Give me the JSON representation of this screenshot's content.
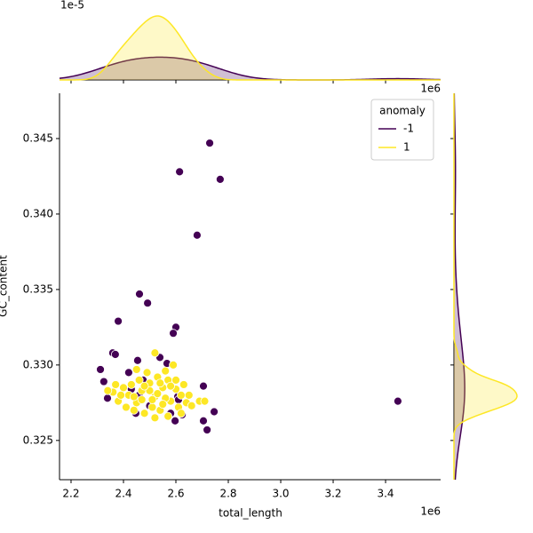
{
  "chart_data": {
    "type": "scatter",
    "x_label": "total_length",
    "y_label": "GC_content",
    "x_offset_label": "1e6",
    "marginal_y_offset_label": "1e6",
    "marginal_x_offset_label": "1e-5",
    "legend_title": "anomaly",
    "legend": "upper right",
    "xlim": [
      2.156,
      3.61
    ],
    "xticks": [
      2.2,
      2.4,
      2.6,
      2.8,
      {
        "value": 3,
        "label": "3.0"
      },
      3.2,
      3.4
    ],
    "ylim": [
      0.3224,
      0.348
    ],
    "yticks": [
      0.325,
      {
        "value": 0.33,
        "label": "0.330"
      },
      0.335,
      {
        "value": 0.34,
        "label": "0.340"
      },
      0.345
    ],
    "series": [
      {
        "name": "-1",
        "color": "#440154",
        "x": [
          2.729,
          2.614,
          2.769,
          2.681,
          2.461,
          2.492,
          2.38,
          2.6,
          2.59,
          2.359,
          2.369,
          3.447,
          2.312,
          2.539,
          2.42,
          2.705,
          2.746,
          2.719,
          2.705,
          2.597,
          2.624,
          2.325,
          2.339,
          2.454,
          2.447,
          2.475,
          2.566,
          2.607,
          2.43,
          2.5,
          2.58,
          2.46,
          2.61
        ],
        "y": [
          0.3447,
          0.3428,
          0.3423,
          0.3386,
          0.3347,
          0.3341,
          0.3329,
          0.3325,
          0.3321,
          0.3308,
          0.3307,
          0.3276,
          0.3297,
          0.3305,
          0.3295,
          0.3286,
          0.3269,
          0.3257,
          0.3263,
          0.3263,
          0.3267,
          0.3289,
          0.3278,
          0.3303,
          0.3268,
          0.329,
          0.3301,
          0.3279,
          0.3284,
          0.3273,
          0.3268,
          0.328,
          0.3277
        ]
      },
      {
        "name": "1",
        "color": "#fde725",
        "x": [
          2.4,
          2.42,
          2.45,
          2.47,
          2.5,
          2.52,
          2.55,
          2.57,
          2.6,
          2.62,
          2.38,
          2.36,
          2.44,
          2.48,
          2.51,
          2.54,
          2.58,
          2.61,
          2.64,
          2.66,
          2.69,
          2.53,
          2.49,
          2.56,
          2.59,
          2.46,
          2.43,
          2.39,
          2.41,
          2.47,
          2.53,
          2.56,
          2.5,
          2.52,
          2.57,
          2.62,
          2.45,
          2.52,
          2.71,
          2.34,
          2.58,
          2.55,
          2.48,
          2.6,
          2.63,
          2.44,
          2.51,
          2.54,
          2.37,
          2.65
        ],
        "y": [
          0.3285,
          0.328,
          0.3275,
          0.3283,
          0.3288,
          0.3279,
          0.3285,
          0.329,
          0.3284,
          0.328,
          0.3276,
          0.3282,
          0.327,
          0.3268,
          0.3272,
          0.327,
          0.3276,
          0.3272,
          0.3275,
          0.3273,
          0.3276,
          0.3292,
          0.3295,
          0.3296,
          0.33,
          0.329,
          0.3287,
          0.328,
          0.3272,
          0.3277,
          0.3281,
          0.3278,
          0.3283,
          0.3265,
          0.3266,
          0.3268,
          0.3297,
          0.3308,
          0.3276,
          0.3283,
          0.3286,
          0.3274,
          0.3286,
          0.329,
          0.3287,
          0.3279,
          0.3277,
          0.3288,
          0.3287,
          0.328
        ]
      }
    ]
  }
}
